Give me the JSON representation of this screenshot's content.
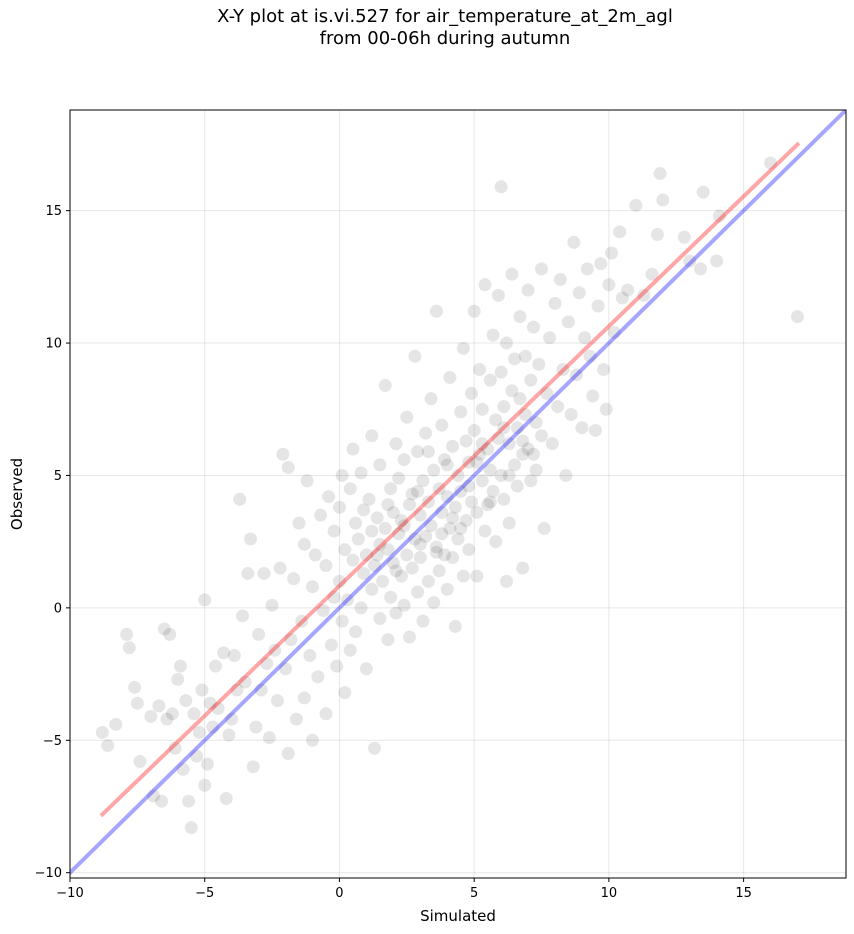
{
  "chart_data": {
    "type": "scatter",
    "title_line1": "X-Y plot at is.vi.527 for air_temperature_at_2m_agl",
    "title_line2": "from 00-06h during autumn",
    "xlabel": "Simulated",
    "ylabel": "Observed",
    "xlim": [
      -10,
      18.8
    ],
    "ylim": [
      -10.2,
      18.8
    ],
    "xticks": [
      -10,
      -5,
      0,
      5,
      10,
      15
    ],
    "yticks": [
      -10,
      -5,
      0,
      5,
      10,
      15
    ],
    "xtick_labels": [
      "−10",
      "−5",
      "0",
      "5",
      "10",
      "15"
    ],
    "ytick_labels": [
      "−10",
      "−5",
      "0",
      "5",
      "10",
      "15"
    ],
    "grid": true,
    "point_color": "#000000",
    "point_alpha": 0.1,
    "series": [
      {
        "kind": "points",
        "points": [
          [
            -8.8,
            -4.7
          ],
          [
            -8.6,
            -5.2
          ],
          [
            -8.3,
            -4.4
          ],
          [
            -7.9,
            -1.0
          ],
          [
            -7.8,
            -1.5
          ],
          [
            -7.6,
            -3.0
          ],
          [
            -7.5,
            -3.6
          ],
          [
            -7.4,
            -5.8
          ],
          [
            -7.0,
            -4.1
          ],
          [
            -6.9,
            -7.1
          ],
          [
            -6.7,
            -3.7
          ],
          [
            -6.6,
            -7.3
          ],
          [
            -6.5,
            -0.8
          ],
          [
            -6.4,
            -4.2
          ],
          [
            -6.3,
            -1.0
          ],
          [
            -6.2,
            -4.0
          ],
          [
            -6.1,
            -5.3
          ],
          [
            -6.0,
            -2.7
          ],
          [
            -5.9,
            -2.2
          ],
          [
            -5.8,
            -6.1
          ],
          [
            -5.7,
            -3.5
          ],
          [
            -5.6,
            -7.3
          ],
          [
            -5.5,
            -8.3
          ],
          [
            -5.4,
            -4.0
          ],
          [
            -5.3,
            -5.6
          ],
          [
            -5.2,
            -4.7
          ],
          [
            -5.1,
            -3.1
          ],
          [
            -5.0,
            -6.7
          ],
          [
            -5.0,
            0.3
          ],
          [
            -4.9,
            -5.9
          ],
          [
            -4.8,
            -3.6
          ],
          [
            -4.7,
            -4.5
          ],
          [
            -4.6,
            -2.2
          ],
          [
            -4.5,
            -3.8
          ],
          [
            -4.3,
            -1.7
          ],
          [
            -4.2,
            -7.2
          ],
          [
            -4.1,
            -4.8
          ],
          [
            -4.0,
            -4.2
          ],
          [
            -3.9,
            -1.8
          ],
          [
            -3.8,
            -3.1
          ],
          [
            -3.7,
            4.1
          ],
          [
            -3.6,
            -0.3
          ],
          [
            -3.5,
            -2.8
          ],
          [
            -3.4,
            1.3
          ],
          [
            -3.3,
            2.6
          ],
          [
            -3.2,
            -6.0
          ],
          [
            -3.1,
            -4.5
          ],
          [
            -3.0,
            -1.0
          ],
          [
            -2.9,
            -3.1
          ],
          [
            -2.8,
            1.3
          ],
          [
            -2.7,
            -2.1
          ],
          [
            -2.6,
            -4.9
          ],
          [
            -2.5,
            0.1
          ],
          [
            -2.4,
            -1.6
          ],
          [
            -2.3,
            -3.5
          ],
          [
            -2.2,
            1.5
          ],
          [
            -2.1,
            5.8
          ],
          [
            -2.0,
            -2.3
          ],
          [
            -1.9,
            -5.5
          ],
          [
            -1.9,
            5.3
          ],
          [
            -1.8,
            -1.2
          ],
          [
            -1.7,
            1.1
          ],
          [
            -1.6,
            -4.2
          ],
          [
            -1.5,
            3.2
          ],
          [
            -1.4,
            -0.5
          ],
          [
            -1.3,
            2.4
          ],
          [
            -1.3,
            -3.4
          ],
          [
            -1.2,
            4.8
          ],
          [
            -1.1,
            -1.8
          ],
          [
            -1.0,
            0.8
          ],
          [
            -1.0,
            -5.0
          ],
          [
            -0.9,
            2.0
          ],
          [
            -0.8,
            -2.6
          ],
          [
            -0.7,
            3.5
          ],
          [
            -0.6,
            -0.1
          ],
          [
            -0.5,
            1.6
          ],
          [
            -0.5,
            -4.0
          ],
          [
            -0.4,
            4.2
          ],
          [
            -0.3,
            -1.4
          ],
          [
            -0.2,
            0.4
          ],
          [
            -0.2,
            2.9
          ],
          [
            -0.1,
            -2.2
          ],
          [
            0.0,
            1.0
          ],
          [
            0.0,
            3.8
          ],
          [
            0.1,
            -0.5
          ],
          [
            0.1,
            5.0
          ],
          [
            0.2,
            -3.2
          ],
          [
            0.2,
            2.2
          ],
          [
            0.3,
            0.3
          ],
          [
            0.4,
            4.5
          ],
          [
            0.4,
            -1.6
          ],
          [
            0.5,
            1.8
          ],
          [
            0.5,
            6.0
          ],
          [
            0.6,
            -0.9
          ],
          [
            0.6,
            3.2
          ],
          [
            0.7,
            2.6
          ],
          [
            0.8,
            0.0
          ],
          [
            0.8,
            5.1
          ],
          [
            0.9,
            1.3
          ],
          [
            0.9,
            3.7
          ],
          [
            1.0,
            -2.3
          ],
          [
            1.0,
            2.0
          ],
          [
            1.1,
            4.1
          ],
          [
            1.2,
            0.7
          ],
          [
            1.2,
            2.9
          ],
          [
            1.2,
            6.5
          ],
          [
            1.3,
            -5.3
          ],
          [
            1.3,
            1.6
          ],
          [
            1.4,
            3.4
          ],
          [
            1.5,
            -0.4
          ],
          [
            1.5,
            2.4
          ],
          [
            1.5,
            5.4
          ],
          [
            1.6,
            1.0
          ],
          [
            1.7,
            3.0
          ],
          [
            1.7,
            8.4
          ],
          [
            1.8,
            -1.2
          ],
          [
            1.8,
            2.2
          ],
          [
            1.9,
            4.5
          ],
          [
            1.9,
            0.4
          ],
          [
            2.0,
            3.6
          ],
          [
            2.0,
            1.7
          ],
          [
            2.1,
            6.2
          ],
          [
            2.1,
            -0.2
          ],
          [
            2.2,
            2.8
          ],
          [
            2.2,
            4.9
          ],
          [
            2.3,
            1.2
          ],
          [
            2.3,
            3.3
          ],
          [
            2.4,
            0.1
          ],
          [
            2.4,
            5.6
          ],
          [
            2.5,
            2.0
          ],
          [
            2.5,
            7.2
          ],
          [
            2.6,
            3.9
          ],
          [
            2.6,
            -1.1
          ],
          [
            2.7,
            1.5
          ],
          [
            2.7,
            4.3
          ],
          [
            2.8,
            2.6
          ],
          [
            2.8,
            9.5
          ],
          [
            2.9,
            0.6
          ],
          [
            2.9,
            5.9
          ],
          [
            3.0,
            3.5
          ],
          [
            3.0,
            1.9
          ],
          [
            3.1,
            4.8
          ],
          [
            3.1,
            -0.5
          ],
          [
            3.2,
            2.7
          ],
          [
            3.2,
            6.6
          ],
          [
            3.3,
            1.0
          ],
          [
            3.3,
            4.0
          ],
          [
            3.4,
            3.1
          ],
          [
            3.4,
            7.9
          ],
          [
            3.5,
            0.2
          ],
          [
            3.5,
            5.2
          ],
          [
            3.6,
            2.3
          ],
          [
            3.6,
            11.2
          ],
          [
            3.7,
            4.5
          ],
          [
            3.7,
            1.4
          ],
          [
            3.8,
            3.6
          ],
          [
            3.8,
            6.9
          ],
          [
            3.9,
            2.0
          ],
          [
            3.9,
            5.6
          ],
          [
            4.0,
            0.7
          ],
          [
            4.0,
            4.2
          ],
          [
            4.1,
            3.0
          ],
          [
            4.1,
            8.7
          ],
          [
            4.2,
            1.9
          ],
          [
            4.2,
            6.1
          ],
          [
            4.3,
            3.8
          ],
          [
            4.3,
            -0.7
          ],
          [
            4.4,
            5.0
          ],
          [
            4.4,
            2.6
          ],
          [
            4.5,
            7.4
          ],
          [
            4.5,
            4.4
          ],
          [
            4.6,
            1.2
          ],
          [
            4.6,
            9.8
          ],
          [
            4.7,
            3.3
          ],
          [
            4.7,
            6.3
          ],
          [
            4.8,
            5.5
          ],
          [
            4.8,
            2.2
          ],
          [
            4.9,
            8.1
          ],
          [
            4.9,
            4.0
          ],
          [
            5.0,
            11.2
          ],
          [
            5.0,
            6.7
          ],
          [
            5.1,
            1.2
          ],
          [
            5.1,
            3.6
          ],
          [
            5.2,
            5.8
          ],
          [
            5.2,
            9.0
          ],
          [
            5.3,
            4.8
          ],
          [
            5.3,
            7.5
          ],
          [
            5.4,
            2.9
          ],
          [
            5.4,
            12.2
          ],
          [
            5.5,
            6.0
          ],
          [
            5.5,
            3.9
          ],
          [
            5.6,
            8.6
          ],
          [
            5.6,
            5.2
          ],
          [
            5.7,
            10.3
          ],
          [
            5.7,
            4.4
          ],
          [
            5.8,
            7.1
          ],
          [
            5.8,
            2.5
          ],
          [
            5.9,
            6.4
          ],
          [
            5.9,
            11.8
          ],
          [
            6.0,
            5.0
          ],
          [
            6.0,
            8.9
          ],
          [
            6.0,
            15.9
          ],
          [
            6.1,
            4.1
          ],
          [
            6.1,
            7.6
          ],
          [
            6.2,
            1.0
          ],
          [
            6.2,
            10.0
          ],
          [
            6.3,
            6.2
          ],
          [
            6.3,
            3.2
          ],
          [
            6.4,
            12.6
          ],
          [
            6.4,
            8.2
          ],
          [
            6.5,
            5.4
          ],
          [
            6.5,
            9.4
          ],
          [
            6.6,
            6.8
          ],
          [
            6.6,
            4.6
          ],
          [
            6.7,
            11.0
          ],
          [
            6.7,
            7.9
          ],
          [
            6.8,
            1.5
          ],
          [
            6.8,
            5.8
          ],
          [
            6.9,
            9.5
          ],
          [
            6.9,
            7.3
          ],
          [
            7.0,
            12.0
          ],
          [
            7.0,
            6.0
          ],
          [
            7.1,
            8.6
          ],
          [
            7.1,
            4.8
          ],
          [
            7.2,
            10.6
          ],
          [
            7.3,
            7.0
          ],
          [
            7.3,
            5.2
          ],
          [
            7.4,
            9.2
          ],
          [
            7.5,
            12.8
          ],
          [
            7.5,
            6.5
          ],
          [
            7.6,
            3.0
          ],
          [
            7.7,
            8.1
          ],
          [
            7.8,
            10.2
          ],
          [
            7.9,
            6.2
          ],
          [
            8.0,
            11.5
          ],
          [
            8.1,
            7.6
          ],
          [
            8.2,
            12.4
          ],
          [
            8.3,
            9.0
          ],
          [
            8.4,
            5.0
          ],
          [
            8.5,
            10.8
          ],
          [
            8.6,
            7.3
          ],
          [
            8.7,
            13.8
          ],
          [
            8.8,
            8.8
          ],
          [
            8.9,
            11.9
          ],
          [
            9.0,
            6.8
          ],
          [
            9.1,
            10.2
          ],
          [
            9.2,
            12.8
          ],
          [
            9.3,
            9.5
          ],
          [
            9.4,
            8.0
          ],
          [
            9.5,
            6.7
          ],
          [
            9.6,
            11.4
          ],
          [
            9.7,
            13.0
          ],
          [
            9.8,
            9.0
          ],
          [
            9.9,
            7.5
          ],
          [
            10.0,
            12.2
          ],
          [
            10.1,
            13.4
          ],
          [
            10.2,
            10.4
          ],
          [
            10.4,
            14.2
          ],
          [
            10.5,
            11.7
          ],
          [
            10.7,
            12.0
          ],
          [
            11.0,
            15.2
          ],
          [
            11.3,
            11.8
          ],
          [
            11.6,
            12.6
          ],
          [
            11.8,
            14.1
          ],
          [
            11.9,
            16.4
          ],
          [
            12.0,
            15.4
          ],
          [
            12.8,
            14.0
          ],
          [
            13.0,
            13.1
          ],
          [
            13.4,
            12.8
          ],
          [
            13.5,
            15.7
          ],
          [
            14.0,
            13.1
          ],
          [
            14.1,
            14.8
          ],
          [
            16.0,
            16.8
          ],
          [
            17.0,
            11.0
          ],
          [
            3.6,
            2.1
          ],
          [
            4.2,
            3.4
          ],
          [
            2.4,
            3.1
          ],
          [
            3.0,
            2.4
          ],
          [
            4.8,
            4.6
          ],
          [
            5.6,
            4.0
          ],
          [
            1.8,
            3.9
          ],
          [
            2.9,
            4.4
          ],
          [
            4.0,
            5.4
          ],
          [
            3.3,
            5.9
          ],
          [
            5.1,
            5.5
          ],
          [
            6.3,
            5.0
          ],
          [
            2.1,
            1.4
          ],
          [
            1.4,
            2.0
          ],
          [
            3.8,
            2.8
          ],
          [
            4.5,
            3.0
          ],
          [
            5.3,
            6.2
          ],
          [
            6.1,
            6.8
          ],
          [
            6.8,
            6.3
          ],
          [
            7.2,
            5.8
          ]
        ]
      },
      {
        "kind": "line",
        "name": "",
        "color": "#ff0000",
        "alpha": 0.35,
        "start": [
          -8.8,
          -7.8
        ],
        "end": [
          17.0,
          17.5
        ]
      },
      {
        "kind": "line",
        "name": "",
        "color": "#0000ff",
        "alpha": 0.35,
        "start": [
          -10.0,
          -10.0
        ],
        "end": [
          18.8,
          18.8
        ]
      }
    ]
  }
}
